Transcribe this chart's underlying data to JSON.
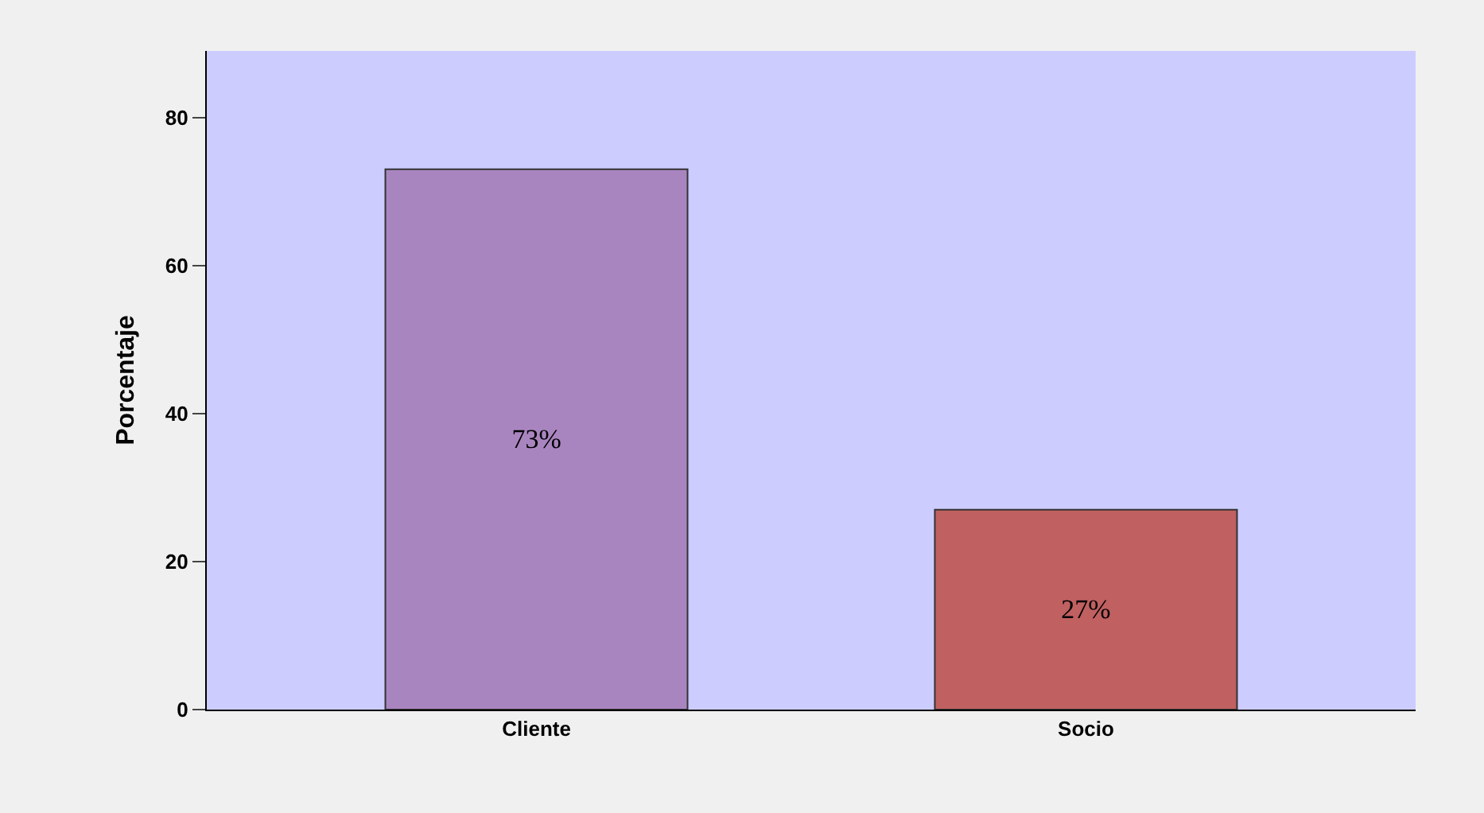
{
  "chart_data": {
    "type": "bar",
    "ylabel": "Porcentaje",
    "categories": [
      "Cliente",
      "Socio"
    ],
    "values": [
      73,
      27
    ],
    "colors": [
      "#a985c0",
      "#c06060"
    ],
    "value_labels": [
      "73%",
      "27%"
    ],
    "ylim": [
      0,
      89
    ],
    "yticks": [
      0,
      20,
      40,
      60,
      80
    ],
    "grid": false,
    "legend": false
  }
}
